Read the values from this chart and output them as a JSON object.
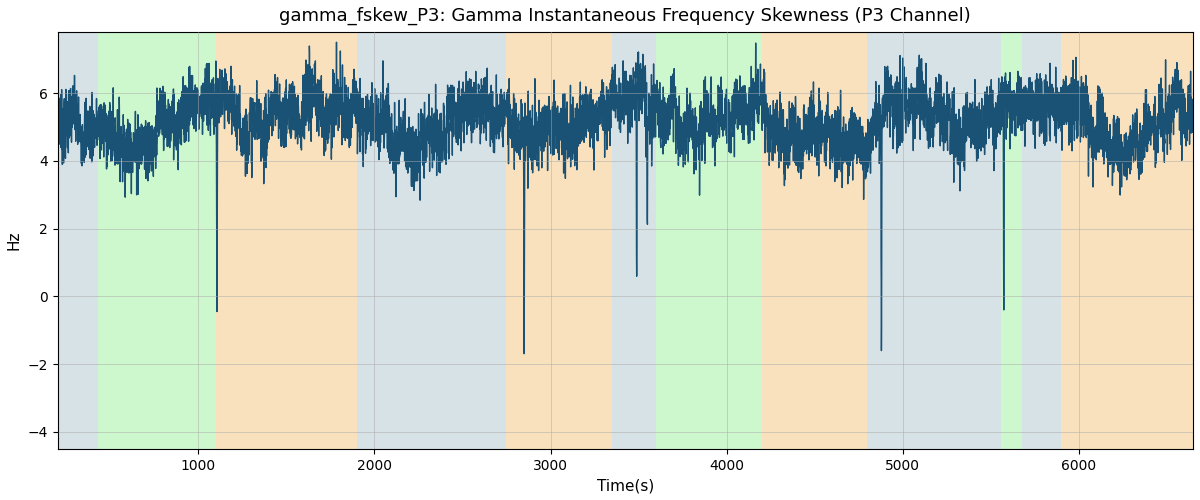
{
  "title": "gamma_fskew_P3: Gamma Instantaneous Frequency Skewness (P3 Channel)",
  "xlabel": "Time(s)",
  "ylabel": "Hz",
  "ylim": [
    -4.5,
    7.8
  ],
  "xlim": [
    200,
    6650
  ],
  "line_color": "#1a5276",
  "line_width": 1.0,
  "grid_color": "#aaaaaa",
  "background_bands": [
    {
      "start": 200,
      "end": 430,
      "color": "#aec6cf",
      "alpha": 0.5
    },
    {
      "start": 430,
      "end": 1100,
      "color": "#90ee90",
      "alpha": 0.45
    },
    {
      "start": 1100,
      "end": 1900,
      "color": "#f5c98a",
      "alpha": 0.55
    },
    {
      "start": 1900,
      "end": 2750,
      "color": "#aec6cf",
      "alpha": 0.5
    },
    {
      "start": 2750,
      "end": 3350,
      "color": "#f5c98a",
      "alpha": 0.55
    },
    {
      "start": 3350,
      "end": 3600,
      "color": "#aec6cf",
      "alpha": 0.5
    },
    {
      "start": 3600,
      "end": 4200,
      "color": "#90ee90",
      "alpha": 0.45
    },
    {
      "start": 4200,
      "end": 4800,
      "color": "#f5c98a",
      "alpha": 0.55
    },
    {
      "start": 4800,
      "end": 5560,
      "color": "#aec6cf",
      "alpha": 0.5
    },
    {
      "start": 5560,
      "end": 5680,
      "color": "#90ee90",
      "alpha": 0.45
    },
    {
      "start": 5680,
      "end": 5900,
      "color": "#aec6cf",
      "alpha": 0.5
    },
    {
      "start": 5900,
      "end": 6650,
      "color": "#f5c98a",
      "alpha": 0.55
    }
  ],
  "yticks": [
    -4,
    -2,
    0,
    2,
    4,
    6
  ],
  "xticks": [
    1000,
    2000,
    3000,
    4000,
    5000,
    6000
  ],
  "seed": 7,
  "n_points": 6450
}
